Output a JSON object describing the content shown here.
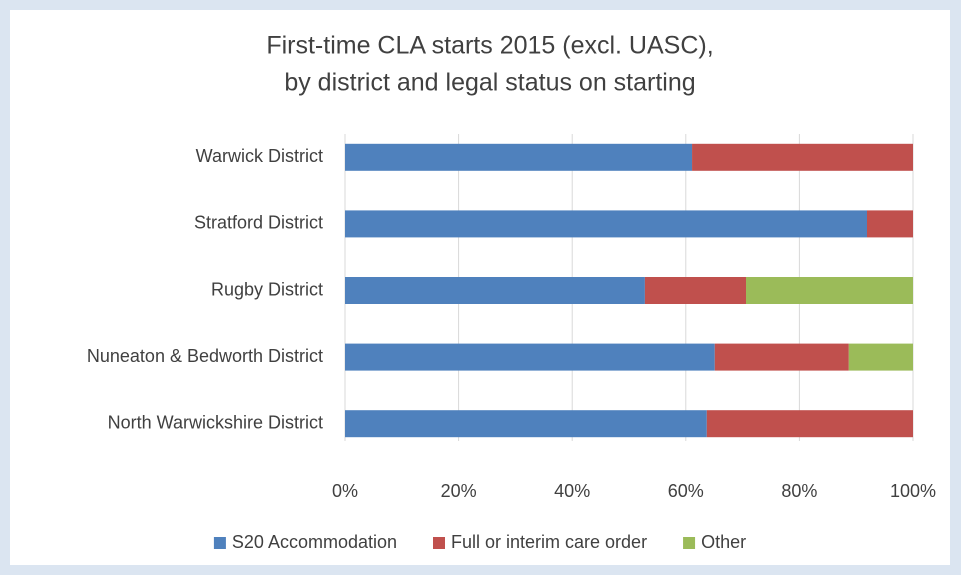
{
  "chart_data": {
    "type": "stacked-barh",
    "title": [
      "First-time CLA starts 2015 (excl. UASC),",
      "by district and legal status on starting"
    ],
    "categories": [
      "Warwick District",
      "Stratford District",
      "Rugby District",
      "Nuneaton & Bedworth District",
      "North Warwickshire District"
    ],
    "series": [
      {
        "name": "S20 Accommodation",
        "color": "#4f81bd",
        "values": [
          61.1,
          91.9,
          52.8,
          65.1,
          63.7
        ]
      },
      {
        "name": "Full or interim care order",
        "color": "#c0504d",
        "values": [
          38.9,
          8.1,
          17.8,
          23.6,
          36.3
        ]
      },
      {
        "name": "Other",
        "color": "#9bbb59",
        "values": [
          0,
          0,
          29.4,
          11.3,
          0
        ]
      }
    ],
    "xlim": [
      0,
      100
    ],
    "xticks": [
      {
        "value": 0,
        "label": "0%"
      },
      {
        "value": 20,
        "label": "20%"
      },
      {
        "value": 40,
        "label": "40%"
      },
      {
        "value": 60,
        "label": "60%"
      },
      {
        "value": 80,
        "label": "80%"
      },
      {
        "value": 100,
        "label": "100%"
      }
    ],
    "grid": true,
    "legend": "bottom"
  }
}
